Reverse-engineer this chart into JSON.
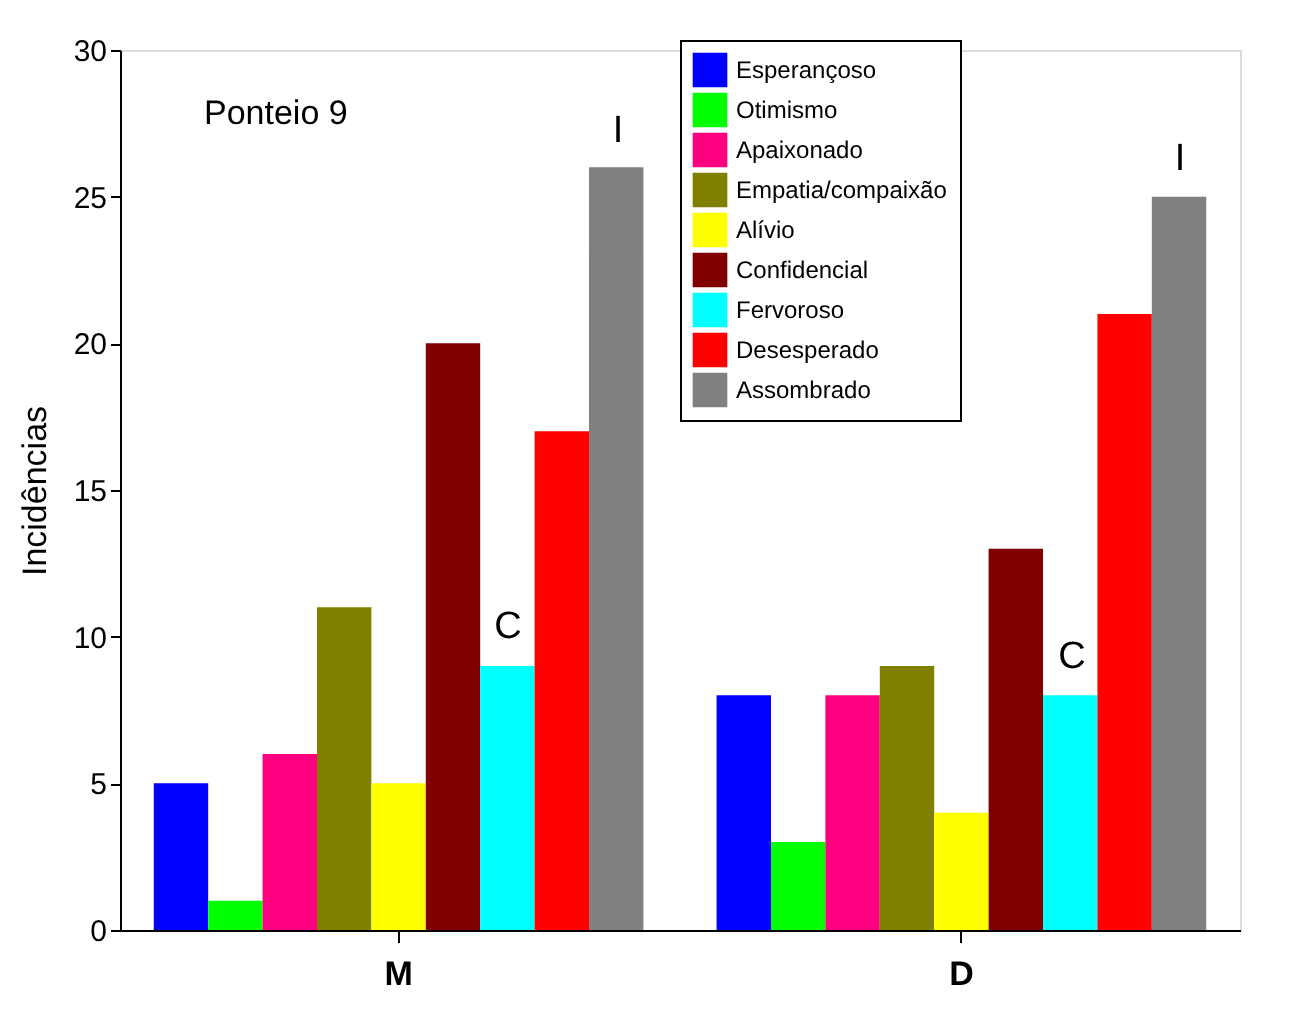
{
  "chart_data": {
    "type": "bar",
    "ylabel": "Incidências",
    "categories": [
      "M",
      "D"
    ],
    "ylim": [
      0,
      30
    ],
    "yticks": [
      0,
      5,
      10,
      15,
      20,
      25,
      30
    ],
    "grid": false,
    "legend": "top right",
    "series": [
      {
        "name": "Esperançoso",
        "color": "#0000ff",
        "values": [
          5,
          8
        ]
      },
      {
        "name": "Otimismo",
        "color": "#00ff00",
        "values": [
          1,
          3
        ]
      },
      {
        "name": "Apaixonado",
        "color": "#ff0080",
        "values": [
          6,
          8
        ]
      },
      {
        "name": "Empatia/compaixão",
        "color": "#808000",
        "values": [
          11,
          9
        ]
      },
      {
        "name": "Alívio",
        "color": "#ffff00",
        "values": [
          5,
          4
        ]
      },
      {
        "name": "Confidencial",
        "color": "#800000",
        "values": [
          20,
          13
        ]
      },
      {
        "name": "Fervoroso",
        "color": "#00ffff",
        "values": [
          9,
          8
        ]
      },
      {
        "name": "Desesperado",
        "color": "#ff0000",
        "values": [
          17,
          21
        ]
      },
      {
        "name": "Assombrado",
        "color": "#808080",
        "values": [
          26,
          25
        ]
      }
    ],
    "annotations": [
      "Ponteio 9",
      "C",
      "I",
      "C",
      "I"
    ]
  }
}
